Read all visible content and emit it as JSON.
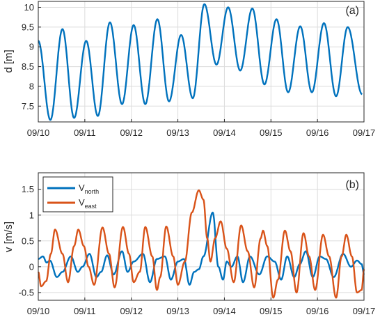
{
  "chart_data": [
    {
      "type": "line",
      "panel_label": "(a)",
      "ylabel": "d [m]",
      "x_ticks": [
        "09/10",
        "09/11",
        "09/12",
        "09/13",
        "09/14",
        "09/15",
        "09/16",
        "09/17"
      ],
      "y_ticks": [
        "7.5",
        "8",
        "8.5",
        "9",
        "9.5",
        "10"
      ],
      "y_tick_values": [
        7.5,
        8,
        8.5,
        9,
        9.5,
        10
      ],
      "xlim": [
        0,
        7
      ],
      "ylim": [
        7.1,
        10.15
      ],
      "grid": true,
      "series": [
        {
          "color": "#0072BD",
          "extrema": [
            [
              0.0,
              9.15
            ],
            [
              0.26,
              7.15
            ],
            [
              0.52,
              9.45
            ],
            [
              0.77,
              7.2
            ],
            [
              1.03,
              9.15
            ],
            [
              1.28,
              7.25
            ],
            [
              1.54,
              9.62
            ],
            [
              1.8,
              7.55
            ],
            [
              2.05,
              9.55
            ],
            [
              2.3,
              7.55
            ],
            [
              2.56,
              9.7
            ],
            [
              2.81,
              7.62
            ],
            [
              3.07,
              9.3
            ],
            [
              3.32,
              7.7
            ],
            [
              3.57,
              10.08
            ],
            [
              3.83,
              8.55
            ],
            [
              4.08,
              10.0
            ],
            [
              4.34,
              8.4
            ],
            [
              4.6,
              9.97
            ],
            [
              4.86,
              8.05
            ],
            [
              5.12,
              9.7
            ],
            [
              5.37,
              7.85
            ],
            [
              5.63,
              9.52
            ],
            [
              5.88,
              7.85
            ],
            [
              6.14,
              9.6
            ],
            [
              6.4,
              7.75
            ],
            [
              6.65,
              9.5
            ],
            [
              6.96,
              7.8
            ]
          ]
        }
      ]
    },
    {
      "type": "line",
      "panel_label": "(b)",
      "ylabel": "v [m/s]",
      "x_ticks": [
        "09/10",
        "09/11",
        "09/12",
        "09/13",
        "09/14",
        "09/15",
        "09/16",
        "09/17"
      ],
      "y_ticks": [
        "-0.5",
        "0",
        "0.5",
        "1",
        "1.5"
      ],
      "y_tick_values": [
        -0.5,
        0,
        0.5,
        1,
        1.5
      ],
      "xlim": [
        0,
        7
      ],
      "ylim": [
        -0.65,
        1.82
      ],
      "grid": true,
      "legend": {
        "placement": "top-left",
        "items": [
          {
            "base": "V",
            "sub": "north",
            "color": "#0072BD"
          },
          {
            "base": "V",
            "sub": "east",
            "color": "#D95319"
          }
        ]
      },
      "series": [
        {
          "color": "#0072BD",
          "extrema": [
            [
              0.0,
              0.15
            ],
            [
              0.1,
              0.2
            ],
            [
              0.18,
              0.08
            ],
            [
              0.25,
              0.12
            ],
            [
              0.4,
              -0.2
            ],
            [
              0.52,
              -0.1
            ],
            [
              0.7,
              0.2
            ],
            [
              0.85,
              -0.1
            ],
            [
              0.95,
              0.0
            ],
            [
              1.1,
              0.25
            ],
            [
              1.25,
              -0.2
            ],
            [
              1.35,
              -0.1
            ],
            [
              1.48,
              0.22
            ],
            [
              1.62,
              -0.15
            ],
            [
              1.8,
              0.3
            ],
            [
              1.92,
              -0.1
            ],
            [
              2.05,
              0.1
            ],
            [
              2.25,
              0.25
            ],
            [
              2.4,
              -0.3
            ],
            [
              2.55,
              0.15
            ],
            [
              2.72,
              0.2
            ],
            [
              2.85,
              -0.25
            ],
            [
              3.0,
              0.1
            ],
            [
              3.13,
              0.15
            ],
            [
              3.25,
              -0.35
            ],
            [
              3.35,
              -0.1
            ],
            [
              3.45,
              -0.05
            ],
            [
              3.55,
              0.2
            ],
            [
              3.75,
              1.05
            ],
            [
              3.87,
              0.0
            ],
            [
              3.97,
              -0.25
            ],
            [
              4.05,
              0.1
            ],
            [
              4.15,
              0.0
            ],
            [
              4.28,
              0.2
            ],
            [
              4.4,
              -0.3
            ],
            [
              4.55,
              0.2
            ],
            [
              4.75,
              -0.15
            ],
            [
              4.92,
              0.2
            ],
            [
              5.08,
              0.1
            ],
            [
              5.22,
              -0.25
            ],
            [
              5.35,
              0.2
            ],
            [
              5.5,
              -0.2
            ],
            [
              5.62,
              0.05
            ],
            [
              5.75,
              0.3
            ],
            [
              5.9,
              -0.2
            ],
            [
              6.05,
              0.2
            ],
            [
              6.18,
              0.15
            ],
            [
              6.35,
              -0.2
            ],
            [
              6.55,
              0.25
            ],
            [
              6.72,
              0.0
            ],
            [
              6.85,
              0.12
            ],
            [
              6.95,
              0.05
            ],
            [
              7.0,
              -0.15
            ]
          ]
        },
        {
          "color": "#D95319",
          "extrema": [
            [
              0.0,
              -0.1
            ],
            [
              0.06,
              -0.38
            ],
            [
              0.17,
              -0.28
            ],
            [
              0.27,
              0.25
            ],
            [
              0.36,
              0.72
            ],
            [
              0.52,
              0.25
            ],
            [
              0.64,
              -0.3
            ],
            [
              0.77,
              0.4
            ],
            [
              0.86,
              0.72
            ],
            [
              0.98,
              0.4
            ],
            [
              1.08,
              0.0
            ],
            [
              1.2,
              -0.35
            ],
            [
              1.38,
              0.76
            ],
            [
              1.52,
              0.25
            ],
            [
              1.64,
              -0.4
            ],
            [
              1.82,
              0.77
            ],
            [
              1.95,
              0.25
            ],
            [
              2.05,
              -0.3
            ],
            [
              2.18,
              -0.1
            ],
            [
              2.3,
              0.77
            ],
            [
              2.45,
              0.2
            ],
            [
              2.55,
              -0.45
            ],
            [
              2.62,
              -0.2
            ],
            [
              2.75,
              0.78
            ],
            [
              2.9,
              0.2
            ],
            [
              3.0,
              -0.35
            ],
            [
              3.15,
              0.1
            ],
            [
              3.3,
              1.05
            ],
            [
              3.45,
              1.48
            ],
            [
              3.55,
              1.3
            ],
            [
              3.63,
              0.55
            ],
            [
              3.7,
              0.1
            ],
            [
              3.8,
              0.55
            ],
            [
              3.92,
              0.88
            ],
            [
              4.05,
              0.35
            ],
            [
              4.2,
              -0.3
            ],
            [
              4.36,
              0.8
            ],
            [
              4.5,
              0.3
            ],
            [
              4.64,
              -0.4
            ],
            [
              4.78,
              0.55
            ],
            [
              4.83,
              0.7
            ],
            [
              4.92,
              0.4
            ],
            [
              5.05,
              -0.6
            ],
            [
              5.15,
              -0.25
            ],
            [
              5.3,
              0.7
            ],
            [
              5.42,
              0.3
            ],
            [
              5.55,
              -0.5
            ],
            [
              5.7,
              0.65
            ],
            [
              5.82,
              0.2
            ],
            [
              5.95,
              -0.45
            ],
            [
              6.12,
              0.62
            ],
            [
              6.25,
              0.2
            ],
            [
              6.4,
              -0.6
            ],
            [
              6.52,
              0.2
            ],
            [
              6.62,
              0.62
            ],
            [
              6.74,
              0.2
            ],
            [
              6.85,
              -0.5
            ],
            [
              6.95,
              -0.45
            ],
            [
              7.0,
              -0.05
            ]
          ]
        }
      ]
    }
  ]
}
